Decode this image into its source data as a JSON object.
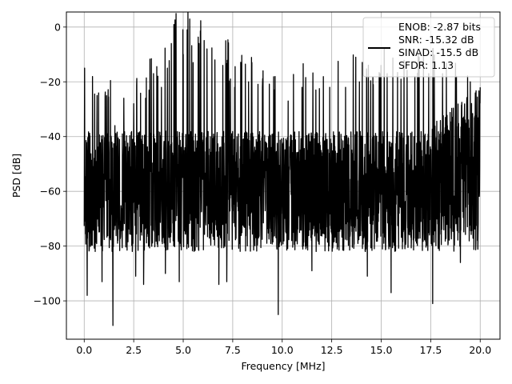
{
  "chart_data": {
    "type": "line",
    "title": "",
    "xlabel": "Frequency [MHz]",
    "ylabel": "PSD [dB]",
    "xlim": [
      -0.9,
      21.0
    ],
    "ylim": [
      -114,
      5.5
    ],
    "x_ticks": [
      0.0,
      2.5,
      5.0,
      7.5,
      10.0,
      12.5,
      15.0,
      17.5,
      20.0
    ],
    "x_tick_labels": [
      "0.0",
      "2.5",
      "5.0",
      "7.5",
      "10.0",
      "12.5",
      "15.0",
      "17.5",
      "20.0"
    ],
    "y_ticks": [
      0,
      -20,
      -40,
      -60,
      -80,
      -100
    ],
    "y_tick_labels": [
      "0",
      "−20",
      "−40",
      "−60",
      "−80",
      "−100"
    ],
    "grid": true,
    "legend_position": "top-right",
    "legend": {
      "lines": [
        "ENOB: -2.87 bits",
        "SNR: -15.32 dB",
        "SINAD: -15.5 dB",
        "SFDR: 1.13"
      ]
    },
    "series": [
      {
        "color": "#000000",
        "x_range": [
          0.0,
          20.0
        ],
        "noise_floor": {
          "median": -60,
          "upper_band": -38,
          "lower_band": -82,
          "upper_band_near_edges": -22
        },
        "spur_peaks": [
          {
            "x": 0.02,
            "y": -15
          },
          {
            "x": 0.65,
            "y": -25
          },
          {
            "x": 1.2,
            "y": -27
          },
          {
            "x": 1.55,
            "y": -36
          },
          {
            "x": 2.0,
            "y": -26
          },
          {
            "x": 2.5,
            "y": -28
          },
          {
            "x": 3.1,
            "y": -26
          },
          {
            "x": 3.5,
            "y": -17
          },
          {
            "x": 3.9,
            "y": -22
          },
          {
            "x": 4.2,
            "y": -15
          },
          {
            "x": 4.4,
            "y": -6
          },
          {
            "x": 4.8,
            "y": -1
          },
          {
            "x": 5.0,
            "y": -10
          },
          {
            "x": 5.2,
            "y": -1
          },
          {
            "x": 5.5,
            "y": -13
          },
          {
            "x": 5.8,
            "y": -6
          },
          {
            "x": 6.2,
            "y": -8
          },
          {
            "x": 6.6,
            "y": -12
          },
          {
            "x": 7.0,
            "y": -14
          },
          {
            "x": 7.6,
            "y": -22
          },
          {
            "x": 8.3,
            "y": -20
          },
          {
            "x": 9.0,
            "y": -22
          },
          {
            "x": 9.6,
            "y": -23
          },
          {
            "x": 10.3,
            "y": -27
          },
          {
            "x": 11.0,
            "y": -22
          },
          {
            "x": 11.7,
            "y": -23
          },
          {
            "x": 12.4,
            "y": -22
          },
          {
            "x": 13.2,
            "y": -22
          },
          {
            "x": 13.9,
            "y": -20
          },
          {
            "x": 14.6,
            "y": -21
          },
          {
            "x": 15.3,
            "y": -17
          },
          {
            "x": 16.0,
            "y": -19
          },
          {
            "x": 16.7,
            "y": -18
          },
          {
            "x": 17.4,
            "y": -17
          },
          {
            "x": 18.1,
            "y": -17
          },
          {
            "x": 18.8,
            "y": -18
          },
          {
            "x": 19.5,
            "y": -20
          },
          {
            "x": 20.0,
            "y": -22
          }
        ],
        "dips": [
          {
            "x": 0.15,
            "y": -98
          },
          {
            "x": 0.9,
            "y": -93
          },
          {
            "x": 1.45,
            "y": -109
          },
          {
            "x": 2.6,
            "y": -91
          },
          {
            "x": 3.0,
            "y": -94
          },
          {
            "x": 4.1,
            "y": -90
          },
          {
            "x": 4.8,
            "y": -93
          },
          {
            "x": 6.8,
            "y": -94
          },
          {
            "x": 7.2,
            "y": -93
          },
          {
            "x": 9.8,
            "y": -105
          },
          {
            "x": 11.5,
            "y": -89
          },
          {
            "x": 14.3,
            "y": -91
          },
          {
            "x": 15.5,
            "y": -97
          },
          {
            "x": 17.6,
            "y": -101
          },
          {
            "x": 19.0,
            "y": -86
          }
        ]
      }
    ]
  }
}
